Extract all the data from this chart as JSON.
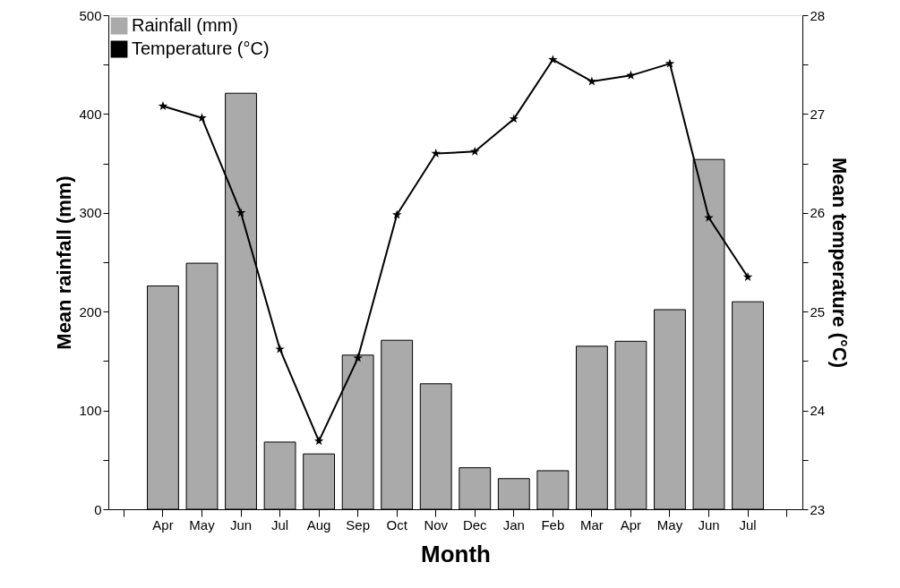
{
  "chart_data": {
    "type": "bar",
    "xlabel": "Month",
    "ylabel": "Mean rainfall (mm)",
    "y2label": "Mean temperature (°C)",
    "categories": [
      null,
      "Apr",
      "May",
      "Jun",
      "Jul",
      "Aug",
      "Sep",
      "Oct",
      "Nov",
      "Dec",
      "Jan",
      "Feb",
      "Mar",
      "Apr",
      "May",
      "Jun",
      "Jul",
      null
    ],
    "series": [
      {
        "name": "Rainfall (mm)",
        "color": "#aaaaaa",
        "values": [
          null,
          226,
          249,
          421,
          68,
          56,
          156,
          171,
          127,
          42,
          31,
          39,
          165,
          170,
          202,
          354,
          210,
          null
        ]
      },
      {
        "name": "Temperature (°C)",
        "type": "line",
        "axis": "y2",
        "color": "#000000",
        "marker": "star",
        "line_style": "solid",
        "values": [
          null,
          27.08,
          26.96,
          26.0,
          24.62,
          23.69,
          24.53,
          25.98,
          26.6,
          26.62,
          26.95,
          27.55,
          27.33,
          27.39,
          27.51,
          25.95,
          25.35,
          null
        ]
      }
    ],
    "ylim": [
      0,
      500
    ],
    "yticks": [
      0,
      {
        "value": 50,
        "label": null
      },
      100,
      {
        "value": 150,
        "label": null
      },
      200,
      {
        "value": 250,
        "label": null
      },
      300,
      {
        "value": 350,
        "label": null
      },
      400,
      {
        "value": 450,
        "label": null
      },
      500
    ],
    "y2lim": [
      23,
      28
    ],
    "y2ticks": [
      23,
      {
        "value": 23.5,
        "label": null
      },
      24,
      {
        "value": 24.5,
        "label": null
      },
      25,
      {
        "value": 25.5,
        "label": null
      },
      26,
      {
        "value": 26.5,
        "label": null
      },
      27,
      {
        "value": 27.5,
        "label": null
      },
      28
    ],
    "grid": false,
    "legend": "top left"
  }
}
